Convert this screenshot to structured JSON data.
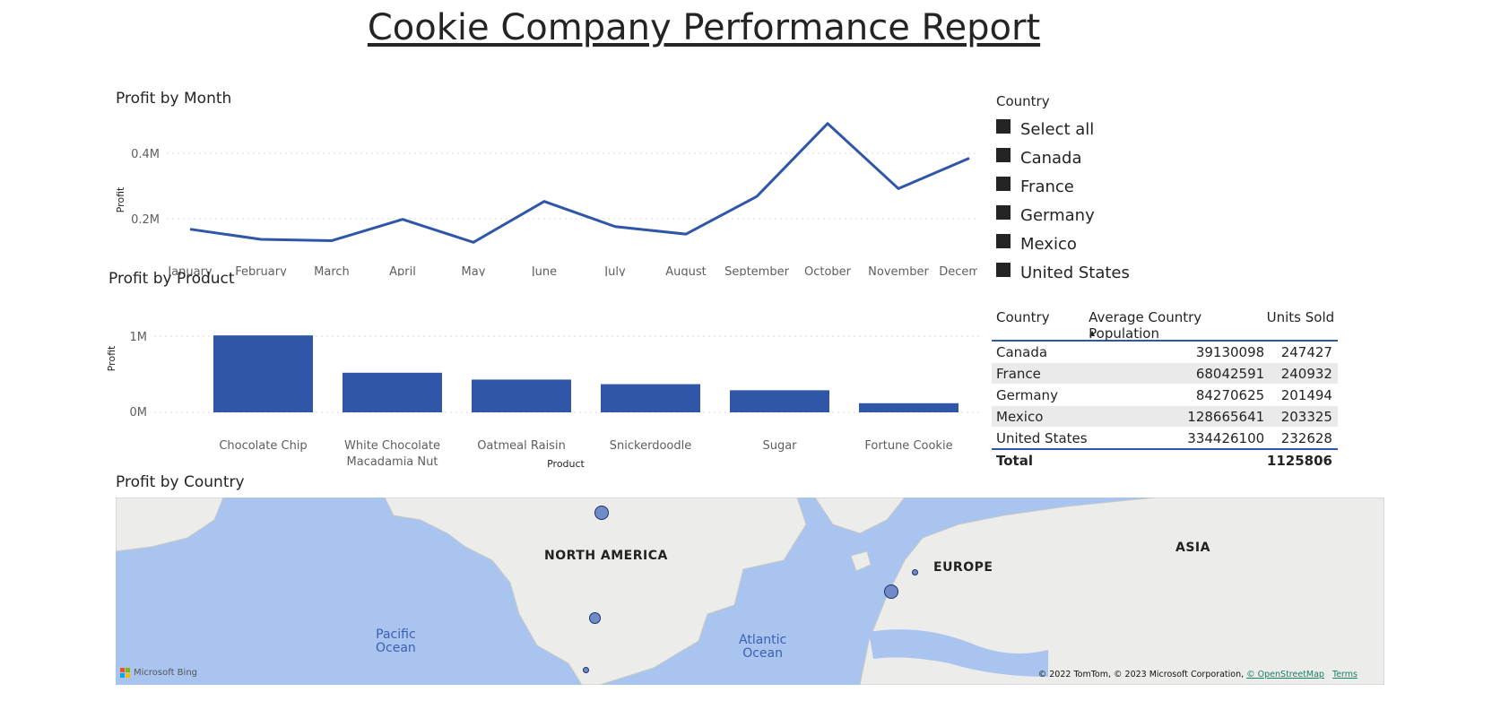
{
  "report": {
    "title": "Cookie Company Performance Report"
  },
  "profit_by_month": {
    "title": "Profit by Month",
    "ylabel": "Profit",
    "yticks": [
      "0.4M",
      "0.2M"
    ]
  },
  "profit_by_product": {
    "title": "Profit by Product",
    "ylabel": "Profit",
    "xlabel": "Product",
    "yticks": [
      "1M",
      "0M"
    ]
  },
  "slicer": {
    "header": "Country",
    "items": [
      "Select all",
      "Canada",
      "France",
      "Germany",
      "Mexico",
      "United States"
    ]
  },
  "table": {
    "headers": [
      "Country",
      "Average Country Population",
      "Units Sold"
    ],
    "rows": [
      [
        "Canada",
        "39130098",
        "247427"
      ],
      [
        "France",
        "68042591",
        "240932"
      ],
      [
        "Germany",
        "84270625",
        "201494"
      ],
      [
        "Mexico",
        "128665641",
        "203325"
      ],
      [
        "United States",
        "334426100",
        "232628"
      ]
    ],
    "total_label": "Total",
    "total_units": "1125806"
  },
  "map": {
    "title": "Profit by Country",
    "labels": [
      "NORTH AMERICA",
      "EUROPE",
      "ASIA"
    ],
    "oceans": [
      "Pacific\nOcean",
      "Atlantic\nOcean"
    ],
    "attribution": "© 2022 TomTom, © 2023 Microsoft Corporation,",
    "osm_link": "© OpenStreetMap",
    "terms_link": "Terms",
    "bing": "Microsoft Bing"
  },
  "colors": {
    "series": "#2f56a7",
    "text": "#252423",
    "ocean": "#a9c4ef",
    "land": "#ececea"
  },
  "chart_data": [
    {
      "type": "line",
      "title": "Profit by Month",
      "ylabel": "Profit",
      "xlabel": "",
      "categories": [
        "January",
        "February",
        "March",
        "April",
        "May",
        "June",
        "July",
        "August",
        "September",
        "October",
        "November",
        "December"
      ],
      "values": [
        168000,
        137000,
        133000,
        198000,
        128000,
        253000,
        176000,
        153000,
        268000,
        491000,
        292000,
        385000
      ],
      "ylim": [
        0.1,
        0.5
      ],
      "unit": "M",
      "grid": true
    },
    {
      "type": "bar",
      "title": "Profit by Product",
      "ylabel": "Profit",
      "xlabel": "Product",
      "categories": [
        "Chocolate Chip",
        "White Chocolate Macadamia Nut",
        "Oatmeal Raisin",
        "Snickerdoodle",
        "Sugar",
        "Fortune Cookie"
      ],
      "values": [
        1010000,
        520000,
        430000,
        370000,
        290000,
        120000
      ],
      "ylim": [
        0,
        1000000
      ],
      "grid": true
    }
  ]
}
